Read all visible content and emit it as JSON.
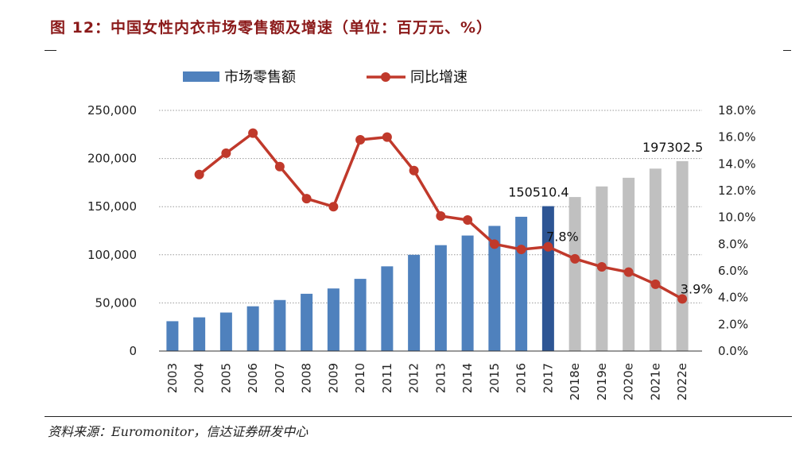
{
  "figure_title": "图 12：中国女性内衣市场零售额及增速（单位：百万元、%）",
  "source_note": "资料来源：Euromonitor，信达证券研发中心",
  "colors": {
    "bar_actual": "#4f81bd",
    "bar_highlight": "#2d5594",
    "bar_forecast": "#c0c0c0",
    "line": "#c0392b"
  },
  "chart_data": {
    "type": "bar",
    "title": "",
    "legend_position": "top-left",
    "grid": true,
    "categories": [
      "2003",
      "2004",
      "2005",
      "2006",
      "2007",
      "2008",
      "2009",
      "2010",
      "2011",
      "2012",
      "2013",
      "2014",
      "2015",
      "2016",
      "2017",
      "2018e",
      "2019e",
      "2020e",
      "2021e",
      "2022e"
    ],
    "y_left": {
      "ticks": [
        "0",
        "50,000",
        "100,000",
        "150,000",
        "200,000",
        "250,000"
      ],
      "ylim": [
        0,
        250000
      ]
    },
    "y_right": {
      "ticks": [
        "0.0%",
        "2.0%",
        "4.0%",
        "6.0%",
        "8.0%",
        "10.0%",
        "12.0%",
        "14.0%",
        "16.0%",
        "18.0%"
      ],
      "ylim": [
        0,
        18
      ]
    },
    "series": [
      {
        "name": "市场零售额",
        "type": "bar",
        "axis": "left",
        "values": [
          31000,
          35000,
          40000,
          46500,
          53000,
          59500,
          65000,
          75000,
          88000,
          100000,
          110000,
          120000,
          130000,
          139500,
          150510.4,
          160000,
          171000,
          180000,
          189500,
          197302.5
        ]
      },
      {
        "name": "同比增速",
        "type": "line",
        "axis": "right",
        "values": [
          null,
          13.2,
          14.8,
          16.3,
          13.8,
          11.4,
          10.8,
          15.8,
          16.0,
          13.5,
          10.1,
          9.8,
          8.0,
          7.6,
          7.8,
          6.9,
          6.3,
          5.9,
          5.0,
          3.9
        ]
      }
    ],
    "highlight_index": 14,
    "forecast_start_index": 15,
    "data_labels": [
      {
        "text": "150510.4",
        "series": "市场零售额",
        "index": 14
      },
      {
        "text": "197302.5",
        "series": "市场零售额",
        "index": 19
      },
      {
        "text": "7.8%",
        "series": "同比增速",
        "index": 14
      },
      {
        "text": "3.9%",
        "series": "同比增速",
        "index": 19
      }
    ]
  }
}
